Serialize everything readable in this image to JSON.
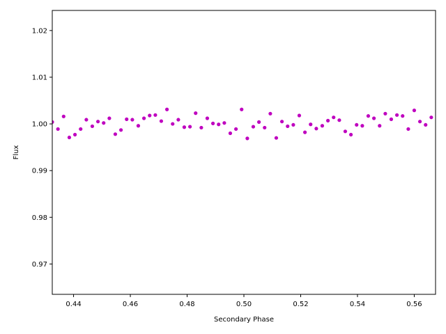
{
  "chart_data": {
    "type": "scatter",
    "title": "",
    "xlabel": "Secondary Phase",
    "ylabel": "Flux",
    "xlim": [
      0.4325,
      0.5675
    ],
    "ylim": [
      0.9635,
      1.0243
    ],
    "xticks": [
      0.44,
      0.46,
      0.48,
      0.5,
      0.52,
      0.54,
      0.56
    ],
    "xtick_labels": [
      "0.44",
      "0.46",
      "0.48",
      "0.50",
      "0.52",
      "0.54",
      "0.56"
    ],
    "yticks": [
      0.97,
      0.98,
      0.99,
      1.0,
      1.01,
      1.02
    ],
    "ytick_labels": [
      "0.97",
      "0.98",
      "0.99",
      "1.00",
      "1.01",
      "1.02"
    ],
    "grid": false,
    "legend": "none",
    "marker_color": "#bf00bf",
    "series": [
      {
        "x": [
          0.4325,
          0.4345,
          0.4365,
          0.4385,
          0.4405,
          0.4425,
          0.4445,
          0.4466,
          0.4486,
          0.4506,
          0.4526,
          0.4547,
          0.4567,
          0.4587,
          0.4607,
          0.4628,
          0.4648,
          0.4668,
          0.4688,
          0.4709,
          0.4729,
          0.4749,
          0.4769,
          0.479,
          0.481,
          0.483,
          0.485,
          0.4871,
          0.4891,
          0.4911,
          0.4931,
          0.4952,
          0.4972,
          0.4992,
          0.5012,
          0.5033,
          0.5053,
          0.5073,
          0.5093,
          0.5114,
          0.5134,
          0.5154,
          0.5174,
          0.5195,
          0.5215,
          0.5235,
          0.5255,
          0.5276,
          0.5296,
          0.5316,
          0.5336,
          0.5357,
          0.5377,
          0.5397,
          0.5417,
          0.5438,
          0.5458,
          0.5478,
          0.5498,
          0.5519,
          0.5539,
          0.5559,
          0.5579,
          0.56,
          0.562,
          0.564,
          0.566
        ],
        "y": [
          1.0004,
          0.9989,
          1.0016,
          0.9971,
          0.9977,
          0.9989,
          1.0009,
          0.9995,
          1.0005,
          1.0002,
          1.0012,
          0.9978,
          0.9987,
          1.001,
          1.0009,
          0.9996,
          1.0012,
          1.0018,
          1.0019,
          1.0006,
          1.0031,
          1.0,
          1.0009,
          0.9993,
          0.9994,
          1.0023,
          0.9992,
          1.0012,
          1.0001,
          0.9999,
          1.0002,
          0.998,
          0.9989,
          1.0031,
          0.9969,
          0.9994,
          1.0004,
          0.9992,
          1.0022,
          0.997,
          1.0005,
          0.9995,
          0.9998,
          1.0018,
          0.9982,
          0.9999,
          0.999,
          0.9996,
          1.0007,
          1.0014,
          1.0008,
          0.9984,
          0.9977,
          0.9998,
          0.9996,
          1.0017,
          1.0012,
          0.9996,
          1.0022,
          1.001,
          1.0019,
          1.0017,
          0.9989,
          1.0029,
          1.0005,
          0.9998,
          1.0014
        ]
      }
    ]
  }
}
